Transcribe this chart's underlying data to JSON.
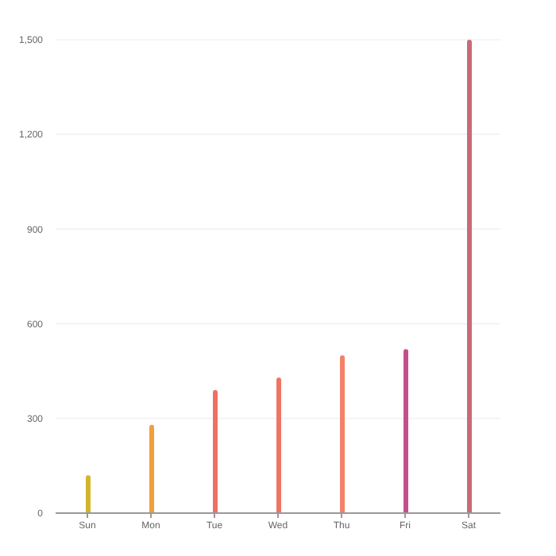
{
  "chart_data": {
    "type": "bar",
    "categories": [
      "Sun",
      "Mon",
      "Tue",
      "Wed",
      "Thu",
      "Fri",
      "Sat"
    ],
    "values": [
      120,
      280,
      390,
      430,
      500,
      520,
      1500
    ],
    "colors": [
      "#d4b42c",
      "#f0a03c",
      "#f07060",
      "#ee7566",
      "#f4806a",
      "#c4508a",
      "#c86a78"
    ],
    "ylim": [
      0,
      1500
    ],
    "yticks": [
      0,
      {
        "value": 300,
        "label": "300"
      },
      {
        "value": 600,
        "label": "600"
      },
      {
        "value": 900,
        "label": "900"
      },
      {
        "value": 1200,
        "label": "1,200"
      },
      {
        "value": 1500,
        "label": "1,500"
      }
    ],
    "grid": "y"
  }
}
